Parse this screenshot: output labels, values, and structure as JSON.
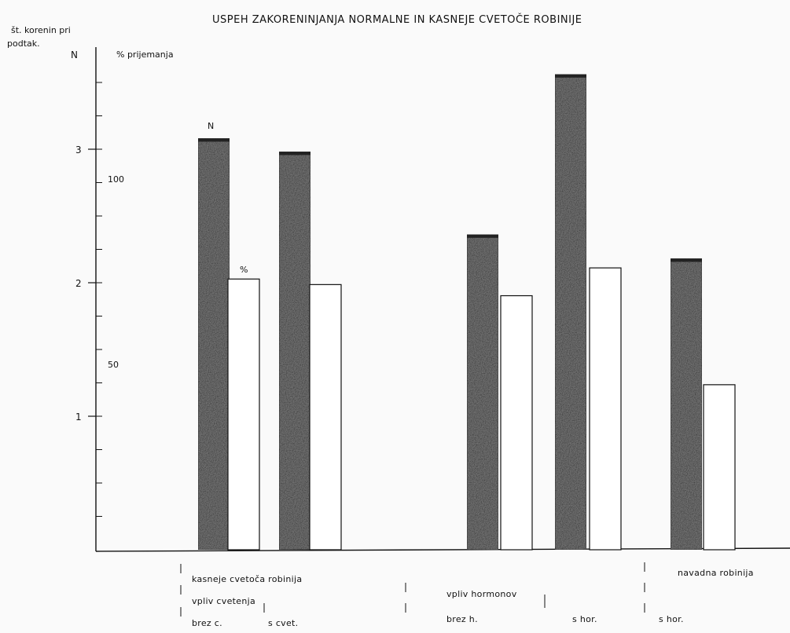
{
  "chart_data": {
    "type": "bar",
    "title": "USPEH ZAKORENINJANJA NORMALNE IN KASNEJE CVETOČE ROBINIJE",
    "axis_left": {
      "label_line1": "št. korenin pri",
      "label_line2": "podtak.",
      "unit": "N",
      "ticks": [
        "1",
        "2",
        "3"
      ],
      "range": [
        0,
        3.75
      ]
    },
    "axis_right": {
      "label": "% prijemanja",
      "ticks": [
        "50",
        "100"
      ],
      "range": [
        0,
        135
      ]
    },
    "bar_labels": {
      "n": "N",
      "pct": "%"
    },
    "groups": [
      {
        "n": 3.08,
        "pct": 73
      },
      {
        "n": 2.98,
        "pct": 71.5
      },
      {
        "n": 2.36,
        "pct": 68.5
      },
      {
        "n": 3.56,
        "pct": 76
      },
      {
        "n": 2.18,
        "pct": 44.5
      }
    ],
    "category_labels": {
      "late": "kasneje cvetoča robinija",
      "flowering": "vpliv cvetenja",
      "no_flower": "brez c.",
      "with_flower": "s cvet.",
      "hormones": "vpliv hormonov",
      "no_hormone": "brez h.",
      "with_hormone": "s hor.",
      "normal": "navadna robinija",
      "normal_hormone": "s hor."
    },
    "colors": {
      "n_bar": "#6f6f6f",
      "pct_bar": "#ffffff",
      "axis": "#111111"
    }
  }
}
